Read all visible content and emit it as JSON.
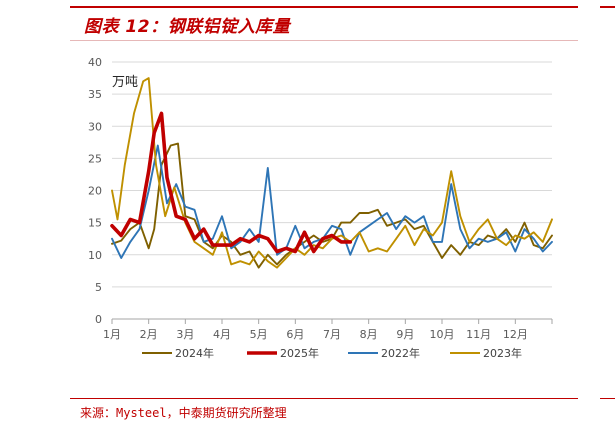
{
  "figure": {
    "title": "图表 12：钢联铝锭入库量",
    "source": "来源：Mysteel，中泰期货研究所整理"
  },
  "chart_data": {
    "type": "line",
    "unit_label": "万吨",
    "ylim": [
      0,
      40
    ],
    "yticks": [
      0,
      5,
      10,
      15,
      20,
      25,
      30,
      35,
      40
    ],
    "xlim": [
      1,
      13
    ],
    "categories": [
      "1月",
      "2月",
      "3月",
      "4月",
      "5月",
      "6月",
      "7月",
      "8月",
      "9月",
      "10月",
      "11月",
      "12月"
    ],
    "grid": true,
    "legend_position": "bottom",
    "series": [
      {
        "name": "2024年",
        "color": "#7f6000",
        "x": [
          1.0,
          1.25,
          1.5,
          1.75,
          2.0,
          2.15,
          2.35,
          2.6,
          2.8,
          3.0,
          3.25,
          3.5,
          3.75,
          4.0,
          4.25,
          4.5,
          4.75,
          5.0,
          5.25,
          5.5,
          5.75,
          6.0,
          6.25,
          6.5,
          6.75,
          7.0,
          7.25,
          7.5,
          7.75,
          8.0,
          8.25,
          8.5,
          8.75,
          9.0,
          9.25,
          9.5,
          9.75,
          10.0,
          10.25,
          10.5,
          10.75,
          11.0,
          11.25,
          11.5,
          11.75,
          12.0,
          12.25,
          12.5,
          12.75,
          13.0
        ],
        "values": [
          11.7,
          12.2,
          14.0,
          15.0,
          11.0,
          14.0,
          24.0,
          27.0,
          27.3,
          16.0,
          15.5,
          12.0,
          11.0,
          13.0,
          12.0,
          10.0,
          10.5,
          8.0,
          10.0,
          8.5,
          10.0,
          11.0,
          12.0,
          13.0,
          12.0,
          12.5,
          15.0,
          15.0,
          16.5,
          16.5,
          17.0,
          14.5,
          15.0,
          15.5,
          14.0,
          14.5,
          12.0,
          9.5,
          11.5,
          10.0,
          12.0,
          11.5,
          13.0,
          12.5,
          14.0,
          12.0,
          15.0,
          11.5,
          11.0,
          13.0
        ]
      },
      {
        "name": "2025年",
        "color": "#c00000",
        "x": [
          1.0,
          1.25,
          1.5,
          1.75,
          2.0,
          2.15,
          2.35,
          2.5,
          2.75,
          3.0,
          3.25,
          3.5,
          3.75,
          4.0,
          4.25,
          4.5,
          4.75,
          5.0,
          5.25,
          5.5,
          5.75,
          6.0,
          6.25,
          6.5,
          6.75,
          7.0,
          7.25,
          7.5
        ],
        "values": [
          14.5,
          13.0,
          15.5,
          15.0,
          23.0,
          29.0,
          32.0,
          22.0,
          16.0,
          15.5,
          12.5,
          14.0,
          11.5,
          11.5,
          11.5,
          12.5,
          12.0,
          13.0,
          12.5,
          10.5,
          11.0,
          10.5,
          13.5,
          10.5,
          12.5,
          13.0,
          12.0,
          12.0
        ]
      },
      {
        "name": "2022年",
        "color": "#2e75b6",
        "x": [
          1.0,
          1.25,
          1.5,
          1.75,
          2.0,
          2.25,
          2.5,
          2.75,
          3.0,
          3.25,
          3.5,
          3.75,
          4.0,
          4.25,
          4.5,
          4.75,
          5.0,
          5.25,
          5.5,
          5.75,
          6.0,
          6.25,
          6.5,
          6.75,
          7.0,
          7.25,
          7.5,
          7.75,
          8.0,
          8.25,
          8.5,
          8.75,
          9.0,
          9.25,
          9.5,
          9.75,
          10.0,
          10.25,
          10.5,
          10.75,
          11.0,
          11.25,
          11.5,
          11.75,
          12.0,
          12.25,
          12.5,
          12.75,
          13.0
        ],
        "values": [
          12.5,
          9.5,
          12.0,
          14.0,
          20.0,
          27.0,
          18.0,
          21.0,
          17.5,
          17.0,
          12.0,
          12.5,
          16.0,
          11.0,
          12.0,
          14.0,
          12.0,
          23.5,
          10.0,
          11.0,
          14.5,
          11.0,
          12.0,
          12.5,
          14.5,
          14.0,
          10.0,
          13.5,
          14.5,
          15.5,
          16.5,
          14.0,
          16.0,
          15.0,
          16.0,
          12.0,
          12.0,
          21.0,
          14.0,
          11.0,
          12.5,
          12.0,
          12.5,
          13.5,
          10.5,
          14.0,
          12.5,
          10.5,
          12.0
        ]
      },
      {
        "name": "2023年",
        "color": "#bf9000",
        "x": [
          1.0,
          1.15,
          1.35,
          1.6,
          1.85,
          2.0,
          2.2,
          2.45,
          2.7,
          3.0,
          3.25,
          3.5,
          3.75,
          4.0,
          4.25,
          4.5,
          4.75,
          5.0,
          5.25,
          5.5,
          5.75,
          6.0,
          6.25,
          6.5,
          6.75,
          7.0,
          7.25,
          7.5,
          7.75,
          8.0,
          8.25,
          8.5,
          8.75,
          9.0,
          9.25,
          9.5,
          9.75,
          10.0,
          10.25,
          10.5,
          10.75,
          11.0,
          11.25,
          11.5,
          11.75,
          12.0,
          12.25,
          12.5,
          12.75,
          13.0
        ],
        "values": [
          20.0,
          15.5,
          24.0,
          32.0,
          37.0,
          37.5,
          24.0,
          16.0,
          20.5,
          15.0,
          12.0,
          11.0,
          10.0,
          13.5,
          8.5,
          9.0,
          8.5,
          10.5,
          9.0,
          8.0,
          9.5,
          11.0,
          10.0,
          11.5,
          11.0,
          12.5,
          13.0,
          12.0,
          13.5,
          10.5,
          11.0,
          10.5,
          12.5,
          14.5,
          11.5,
          14.0,
          13.0,
          15.0,
          23.0,
          16.0,
          12.0,
          14.0,
          15.5,
          12.5,
          11.5,
          13.0,
          12.5,
          13.5,
          12.0,
          15.5
        ]
      }
    ]
  }
}
